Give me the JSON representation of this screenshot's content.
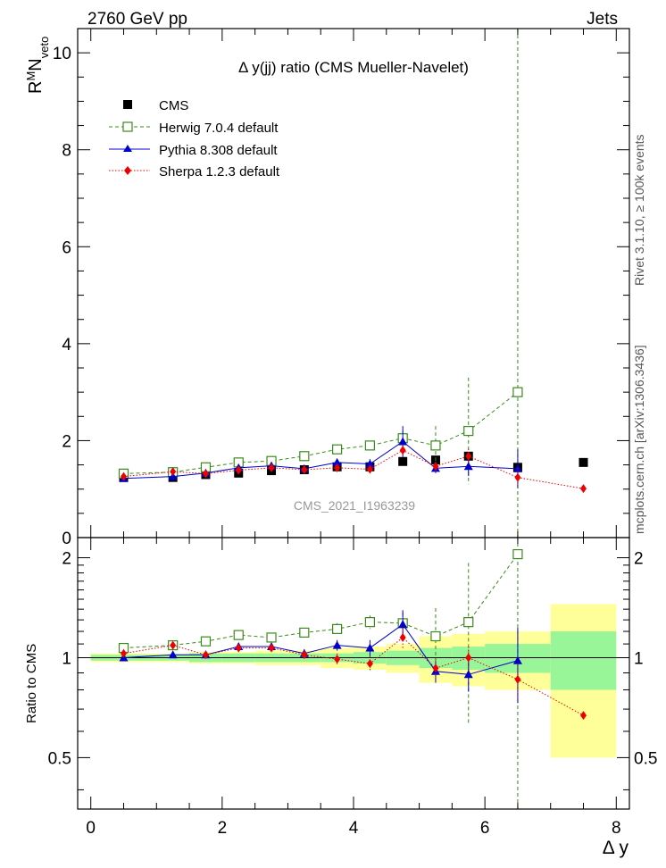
{
  "header": {
    "left": "2760 GeV pp",
    "right": "Jets",
    "title": "Δ y(jj) ratio (CMS Mueller-Navelet)",
    "watermark": "CMS_2021_I1963239",
    "side_rivet": "Rivet 3.1.10, ≥ 100k events",
    "side_mcplots": "mcplots.cern.ch [arXiv:1306.3436]"
  },
  "colors": {
    "cms": "#000000",
    "herwig": "#3a8a1a",
    "pythia": "#0000cc",
    "sherpa": "#ee0000",
    "band_inner": "#98f598",
    "band_outer": "#ffff99"
  },
  "chart_data": [
    {
      "type": "scatter",
      "panel": "main",
      "ylabel": "R^M N_veto",
      "xlim": [
        -0.2,
        8.2
      ],
      "ylim": [
        0,
        10.5
      ],
      "yticks": [
        0,
        2,
        4,
        6,
        8,
        10
      ],
      "legend_position": "top-left",
      "legend": [
        "CMS",
        "Herwig 7.0.4 default",
        "Pythia 8.308 default",
        "Sherpa 1.2.3 default"
      ],
      "x": [
        0.5,
        1.25,
        1.75,
        2.25,
        2.75,
        3.25,
        3.75,
        4.25,
        4.75,
        5.25,
        5.75,
        6.5,
        7.5
      ],
      "series": [
        {
          "name": "CMS",
          "values": [
            1.24,
            1.24,
            1.3,
            1.33,
            1.38,
            1.4,
            1.46,
            1.46,
            1.57,
            1.6,
            1.68,
            1.45,
            1.55
          ]
        },
        {
          "name": "Herwig 7.0.4 default",
          "values": [
            1.32,
            1.35,
            1.45,
            1.55,
            1.58,
            1.68,
            1.82,
            1.9,
            2.05,
            1.9,
            2.2,
            3.0,
            null
          ],
          "err": [
            0.03,
            0.03,
            0.04,
            0.04,
            0.05,
            0.05,
            0.07,
            0.08,
            0.15,
            0.4,
            1.1,
            7.5,
            null
          ]
        },
        {
          "name": "Pythia 8.308 default",
          "values": [
            1.22,
            1.26,
            1.33,
            1.44,
            1.48,
            1.42,
            1.55,
            1.52,
            1.98,
            1.43,
            1.47,
            1.42,
            null
          ],
          "err": [
            0.02,
            0.02,
            0.03,
            0.04,
            0.04,
            0.05,
            0.06,
            0.1,
            0.32,
            0.1,
            0.2,
            0.4,
            null
          ]
        },
        {
          "name": "Sherpa 1.2.3 default",
          "values": [
            1.26,
            1.36,
            1.32,
            1.39,
            1.44,
            1.4,
            1.44,
            1.41,
            1.8,
            1.47,
            1.68,
            1.24,
            1.01
          ],
          "err": [
            0.03,
            0.03,
            0.03,
            0.04,
            0.04,
            0.05,
            0.06,
            0.07,
            0.12,
            0.1,
            0.15,
            0.2,
            0.0
          ]
        }
      ]
    },
    {
      "type": "scatter",
      "panel": "ratio",
      "xlabel": "Δ y",
      "ylabel": "Ratio to CMS",
      "xlim": [
        -0.2,
        8.2
      ],
      "ylim": [
        0.35,
        2.3
      ],
      "yticks": [
        0.5,
        1,
        2
      ],
      "xticks": [
        0,
        2,
        4,
        6,
        8
      ],
      "log_y": true,
      "x": [
        0.5,
        1.25,
        1.75,
        2.25,
        2.75,
        3.25,
        3.75,
        4.25,
        4.75,
        5.25,
        5.75,
        6.5,
        7.5
      ],
      "bins": [
        [
          0,
          1
        ],
        [
          1,
          1.5
        ],
        [
          1.5,
          2
        ],
        [
          2,
          2.5
        ],
        [
          2.5,
          3
        ],
        [
          3,
          3.5
        ],
        [
          3.5,
          4
        ],
        [
          4,
          4.5
        ],
        [
          4.5,
          5
        ],
        [
          5,
          5.5
        ],
        [
          5.5,
          6
        ],
        [
          6,
          7
        ],
        [
          7,
          8
        ]
      ],
      "band_inner": [
        [
          0.98,
          1.02
        ],
        [
          0.98,
          1.02
        ],
        [
          0.97,
          1.03
        ],
        [
          0.97,
          1.03
        ],
        [
          0.97,
          1.03
        ],
        [
          0.97,
          1.03
        ],
        [
          0.97,
          1.03
        ],
        [
          0.96,
          1.04
        ],
        [
          0.95,
          1.05
        ],
        [
          0.93,
          1.07
        ],
        [
          0.92,
          1.08
        ],
        [
          0.9,
          1.1
        ],
        [
          0.8,
          1.2
        ]
      ],
      "band_outer": [
        [
          0.97,
          1.03
        ],
        [
          0.97,
          1.03
        ],
        [
          0.96,
          1.04
        ],
        [
          0.96,
          1.04
        ],
        [
          0.95,
          1.05
        ],
        [
          0.95,
          1.05
        ],
        [
          0.93,
          1.07
        ],
        [
          0.92,
          1.08
        ],
        [
          0.9,
          1.1
        ],
        [
          0.84,
          1.16
        ],
        [
          0.82,
          1.18
        ],
        [
          0.8,
          1.2
        ],
        [
          0.5,
          1.45
        ]
      ],
      "series": [
        {
          "name": "Herwig 7.0.4 default",
          "values": [
            1.07,
            1.09,
            1.12,
            1.17,
            1.15,
            1.19,
            1.22,
            1.28,
            1.27,
            1.16,
            1.28,
            2.05,
            null
          ],
          "err": [
            0.02,
            0.02,
            0.03,
            0.03,
            0.03,
            0.04,
            0.05,
            0.06,
            0.1,
            0.25,
            0.65,
            3.0,
            null
          ]
        },
        {
          "name": "Pythia 8.308 default",
          "values": [
            1.0,
            1.02,
            1.02,
            1.08,
            1.08,
            1.03,
            1.09,
            1.07,
            1.26,
            0.91,
            0.89,
            0.98,
            null
          ],
          "err": [
            0.01,
            0.01,
            0.02,
            0.02,
            0.02,
            0.03,
            0.04,
            0.06,
            0.13,
            0.07,
            0.1,
            0.25,
            null
          ]
        },
        {
          "name": "Sherpa 1.2.3 default",
          "values": [
            1.03,
            1.09,
            1.02,
            1.07,
            1.07,
            1.02,
            0.99,
            0.96,
            1.15,
            0.93,
            1.0,
            0.86,
            0.67
          ],
          "err": [
            0.02,
            0.02,
            0.02,
            0.03,
            0.03,
            0.03,
            0.04,
            0.05,
            0.08,
            0.07,
            0.08,
            0.1,
            0.0
          ]
        }
      ]
    }
  ]
}
